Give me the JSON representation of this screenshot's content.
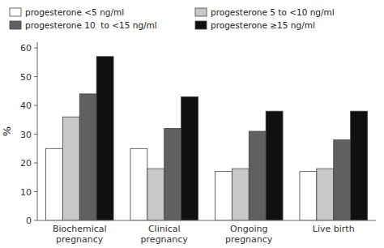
{
  "chart_data": {
    "type": "bar",
    "categories": [
      "Biochemical\npregnancy",
      "Clinical\npregnancy",
      "Ongoing\npregnancy",
      "Live birth"
    ],
    "series": [
      {
        "name": "progesterone <5 ng/ml",
        "color": "#ffffff",
        "values": [
          25,
          25,
          17,
          17
        ]
      },
      {
        "name": "progesterone 5 to <10 ng/ml",
        "color": "#c8c8c8",
        "values": [
          36,
          18,
          18,
          18
        ]
      },
      {
        "name": "progesterone 10  to <15 ng/ml",
        "color": "#606060",
        "values": [
          44,
          32,
          31,
          28
        ]
      },
      {
        "name": "progesterone ≥15 ng/ml",
        "color": "#101010",
        "values": [
          57,
          43,
          38,
          38
        ]
      }
    ],
    "y_label": "%",
    "ylim": [
      0,
      62
    ],
    "yticks": [
      0,
      10,
      20,
      30,
      40,
      50,
      60
    ],
    "grid": false,
    "legend": "top"
  }
}
